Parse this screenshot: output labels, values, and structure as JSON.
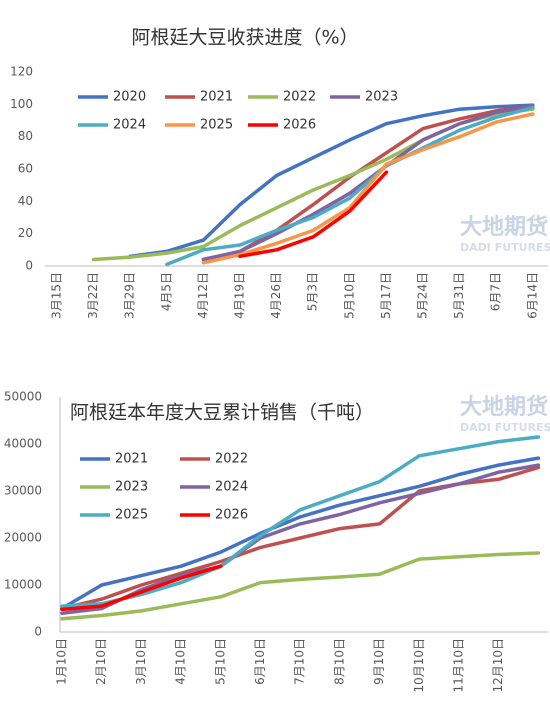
{
  "chart_data": [
    {
      "type": "line",
      "title": "阿根廷大豆收获进度（%）",
      "categories": [
        "3月15日",
        "3月22日",
        "3月29日",
        "4月5日",
        "4月12日",
        "4月19日",
        "4月26日",
        "5月3日",
        "5月10日",
        "5月17日",
        "5月24日",
        "5月31日",
        "6月7日",
        "6月14日"
      ],
      "series": [
        {
          "name": "2020",
          "color": "#4472c4",
          "values": [
            null,
            null,
            6,
            9,
            16,
            38,
            56,
            67,
            78,
            88,
            93,
            97,
            98.5,
            99.5
          ]
        },
        {
          "name": "2021",
          "color": "#c0504d",
          "values": [
            null,
            null,
            null,
            null,
            4,
            9,
            22,
            38,
            55,
            70,
            85,
            91,
            96,
            99
          ]
        },
        {
          "name": "2022",
          "color": "#9bbb59",
          "values": [
            null,
            4,
            5.5,
            8,
            12,
            25,
            36,
            47,
            56,
            66,
            78,
            88,
            94,
            97
          ]
        },
        {
          "name": "2023",
          "color": "#8064a2",
          "values": [
            null,
            null,
            null,
            null,
            4,
            9,
            20,
            32,
            45,
            62,
            78,
            88,
            95,
            99
          ]
        },
        {
          "name": "2024",
          "color": "#4bacc6",
          "values": [
            null,
            null,
            null,
            1,
            10,
            13,
            22,
            30,
            42,
            62,
            73,
            84,
            92,
            98
          ]
        },
        {
          "name": "2025",
          "color": "#f79646",
          "values": [
            null,
            null,
            null,
            null,
            2,
            7,
            14,
            22,
            36,
            63,
            72,
            80,
            89,
            94
          ]
        },
        {
          "name": "2026",
          "color": "#ff0000",
          "values": [
            null,
            null,
            null,
            null,
            null,
            6,
            10,
            18,
            34,
            58,
            null,
            null,
            null,
            null
          ]
        }
      ],
      "ylim": [
        0,
        120
      ],
      "yticks": [
        0,
        20,
        40,
        60,
        80,
        100,
        120
      ],
      "grid": false,
      "annotations": [
        "大地期货",
        "DADI FUTURES"
      ]
    },
    {
      "type": "line",
      "title": "阿根廷本年度大豆累计销售（千吨）",
      "categories": [
        "1月10日",
        "2月10日",
        "3月10日",
        "4月10日",
        "5月10日",
        "6月10日",
        "7月10日",
        "8月10日",
        "9月10日",
        "10月10日",
        "11月10日",
        "12月10日",
        null
      ],
      "series": [
        {
          "name": "2021",
          "color": "#4472c4",
          "values": [
            5000,
            10000,
            12000,
            14000,
            17000,
            21000,
            24500,
            27000,
            29000,
            31000,
            33500,
            35500,
            37000
          ]
        },
        {
          "name": "2022",
          "color": "#c0504d",
          "values": [
            5000,
            7000,
            10000,
            12500,
            15000,
            18000,
            20000,
            22000,
            23000,
            30000,
            31500,
            32500,
            35000
          ]
        },
        {
          "name": "2023",
          "color": "#9bbb59",
          "values": [
            2800,
            3500,
            4500,
            6000,
            7500,
            10500,
            11200,
            11700,
            12300,
            15500,
            16000,
            16500,
            16800
          ]
        },
        {
          "name": "2024",
          "color": "#8064a2",
          "values": [
            4000,
            5000,
            9000,
            12000,
            14000,
            20000,
            23000,
            25000,
            27500,
            29500,
            31500,
            34000,
            35500
          ]
        },
        {
          "name": "2025",
          "color": "#4bacc6",
          "values": [
            5500,
            6000,
            8000,
            10500,
            14000,
            20500,
            26000,
            29000,
            32000,
            37500,
            39000,
            40500,
            41500
          ]
        },
        {
          "name": "2026",
          "color": "#ff0000",
          "values": [
            4800,
            5500,
            8500,
            11500,
            14000,
            null,
            null,
            null,
            null,
            null,
            null,
            null,
            null
          ]
        }
      ],
      "ylim": [
        0,
        50000
      ],
      "yticks": [
        0,
        10000,
        20000,
        30000,
        40000,
        50000
      ],
      "grid": false,
      "annotations": [
        "大地期货",
        "DADI FUTURES"
      ]
    }
  ]
}
